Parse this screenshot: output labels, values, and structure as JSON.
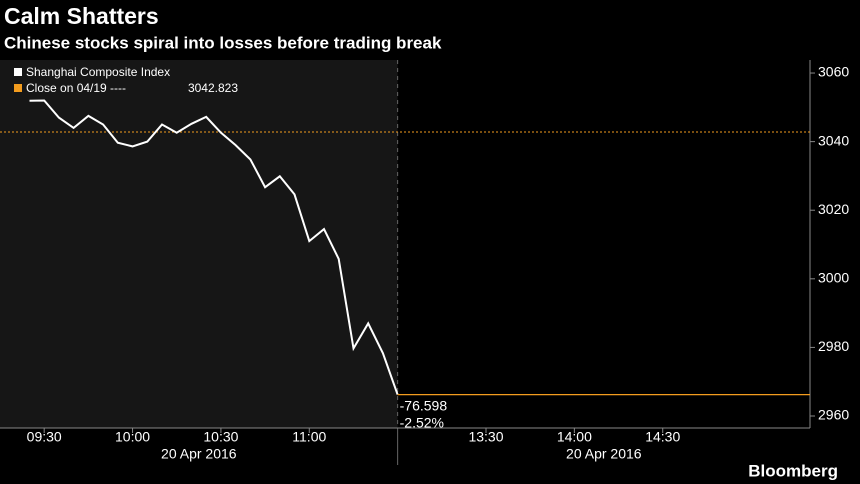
{
  "chart_data": {
    "type": "line",
    "title": "Calm Shatters",
    "subtitle": "Chinese stocks spiral into losses before trading break",
    "x": [
      "09:25",
      "09:30",
      "09:35",
      "09:40",
      "09:45",
      "09:50",
      "09:55",
      "10:00",
      "10:05",
      "10:10",
      "10:15",
      "10:20",
      "10:25",
      "10:30",
      "10:35",
      "10:40",
      "10:45",
      "10:50",
      "10:55",
      "11:00",
      "11:05",
      "11:10",
      "11:15",
      "11:20",
      "11:25",
      "11:30"
    ],
    "series": [
      {
        "name": "Shanghai Composite Index",
        "color": "#ffffff",
        "values": [
          3051.9,
          3052,
          3047,
          3044,
          3047.5,
          3045,
          3039.7,
          3038.6,
          3040,
          3045,
          3042.6,
          3045.2,
          3047.2,
          3042.6,
          3039,
          3034.8,
          3026.7,
          3029.9,
          3024.6,
          3011,
          3014.5,
          3005.8,
          2979.7,
          2987,
          2978.3,
          2966.225
        ]
      }
    ],
    "reference": {
      "label": "Close on 04/19 ----",
      "value": 3042.823,
      "color": "#f39c1e"
    },
    "change": {
      "value": -76.598,
      "percent": {
        "value": -2.52,
        "label": "-2.52%"
      },
      "color": "#f39c1e"
    },
    "xlim": [
      "09:15",
      "15:20"
    ],
    "session_break": [
      "11:30",
      "13:00"
    ],
    "xticks": [
      "09:30",
      "10:00",
      "10:30",
      "11:00",
      "13:30",
      "14:00",
      "14:30"
    ],
    "date_labels": [
      "20 Apr 2016",
      "20 Apr 2016"
    ],
    "ylim": [
      2956.5,
      3063.8
    ],
    "yticks": [
      2960,
      2980,
      3000,
      3020,
      3040,
      3060
    ],
    "grid": false,
    "source": "Bloomberg"
  }
}
